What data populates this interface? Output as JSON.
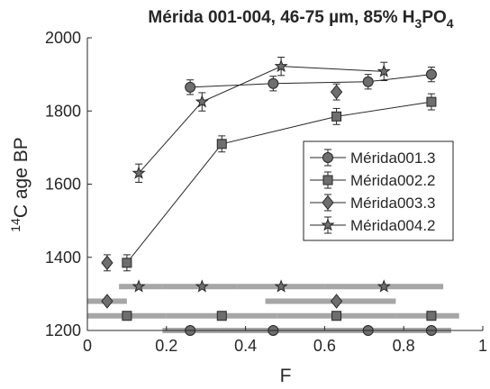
{
  "chart_data": {
    "type": "line",
    "title": {
      "main": "Mérida 001-004, 46-75 µm, 85% H",
      "sub1": "3",
      "mid": "PO",
      "sub2": "4"
    },
    "xlabel": "F",
    "ylabel": {
      "sup": "14",
      "rest": "C age BP"
    },
    "xlim": [
      0,
      1
    ],
    "ylim": [
      1200,
      2000
    ],
    "xticks": [
      0,
      0.2,
      0.4,
      0.6,
      0.8,
      1
    ],
    "xtick_labels": [
      "0",
      "0.2",
      "0.4",
      "0.6",
      "0.8",
      "1"
    ],
    "yticks": [
      1200,
      1400,
      1600,
      1800,
      2000
    ],
    "ytick_labels": [
      "1200",
      "1400",
      "1600",
      "1800",
      "2000"
    ],
    "grid": false,
    "legend_position": "right",
    "series": [
      {
        "name": "Mérida001.3",
        "marker": "circle",
        "x": [
          0.26,
          0.47,
          0.71,
          0.87
        ],
        "y": [
          1865,
          1875,
          1880,
          1900
        ],
        "err": [
          20,
          20,
          20,
          20
        ]
      },
      {
        "name": "Mérida002.2",
        "marker": "square",
        "x": [
          0.1,
          0.34,
          0.63,
          0.87
        ],
        "y": [
          1385,
          1710,
          1785,
          1825
        ],
        "err": [
          22,
          22,
          22,
          22
        ]
      },
      {
        "name": "Mérida003.3",
        "marker": "diamond",
        "x": [
          0.05,
          0.63
        ],
        "y": [
          1385,
          1852
        ],
        "err": [
          22,
          22
        ],
        "connect": false
      },
      {
        "name": "Mérida004.2",
        "marker": "star",
        "x": [
          0.13,
          0.29,
          0.49,
          0.75
        ],
        "y": [
          1630,
          1825,
          1922,
          1908
        ],
        "err": [
          25,
          25,
          25,
          25
        ]
      }
    ],
    "range_bars": [
      {
        "marker": "circle",
        "ys": 1200,
        "segments": [
          [
            0.19,
            0.33
          ],
          [
            0.33,
            0.6
          ],
          [
            0.6,
            0.82
          ],
          [
            0.82,
            0.92
          ]
        ],
        "points": [
          0.26,
          0.47,
          0.71,
          0.87
        ]
      },
      {
        "marker": "square",
        "ys": 1240,
        "segments": [
          [
            0,
            0.2
          ],
          [
            0.2,
            0.48
          ],
          [
            0.48,
            0.78
          ],
          [
            0.78,
            0.94
          ]
        ],
        "points": [
          0.1,
          0.34,
          0.63,
          0.87
        ]
      },
      {
        "marker": "diamond",
        "ys": 1280,
        "segments": [
          [
            0,
            0.1
          ],
          [
            0.45,
            0.78
          ]
        ],
        "points": [
          0.05,
          0.63
        ]
      },
      {
        "marker": "star",
        "ys": 1320,
        "segments": [
          [
            0.08,
            0.19
          ],
          [
            0.19,
            0.38
          ],
          [
            0.38,
            0.6
          ],
          [
            0.6,
            0.9
          ]
        ],
        "points": [
          0.13,
          0.29,
          0.49,
          0.75
        ]
      }
    ],
    "colors": {
      "line": "#262626",
      "marker_fill": "#6e6e6e",
      "range_bar": "#a6a6a6",
      "axis": "#262626"
    }
  }
}
